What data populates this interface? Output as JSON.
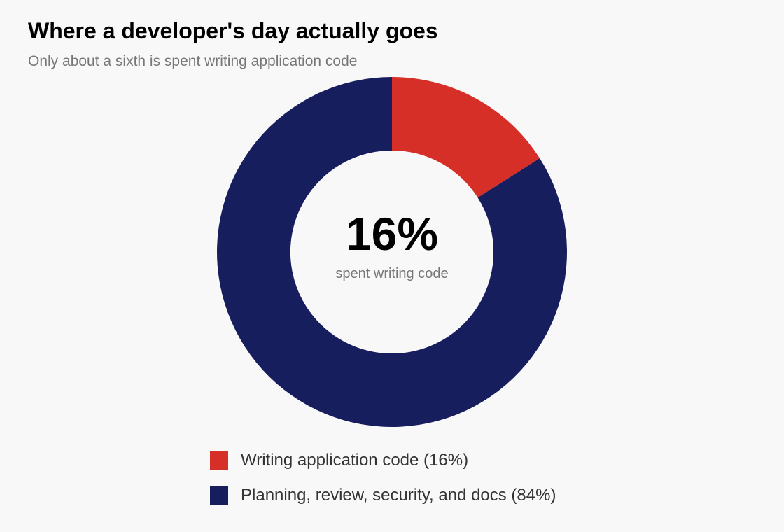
{
  "chart_data": {
    "type": "pie",
    "title": "Where a developer's day actually goes",
    "subtitle": "Only about a sixth is spent writing application code",
    "center_value": "16%",
    "center_label": "spent writing code",
    "slices": [
      {
        "label": "Writing application code (16%)",
        "value": 16,
        "color": "#d62f27"
      },
      {
        "label": "Planning, review, security, and docs (84%)",
        "value": 84,
        "color": "#171e5e"
      }
    ],
    "legend_position": "bottom"
  }
}
